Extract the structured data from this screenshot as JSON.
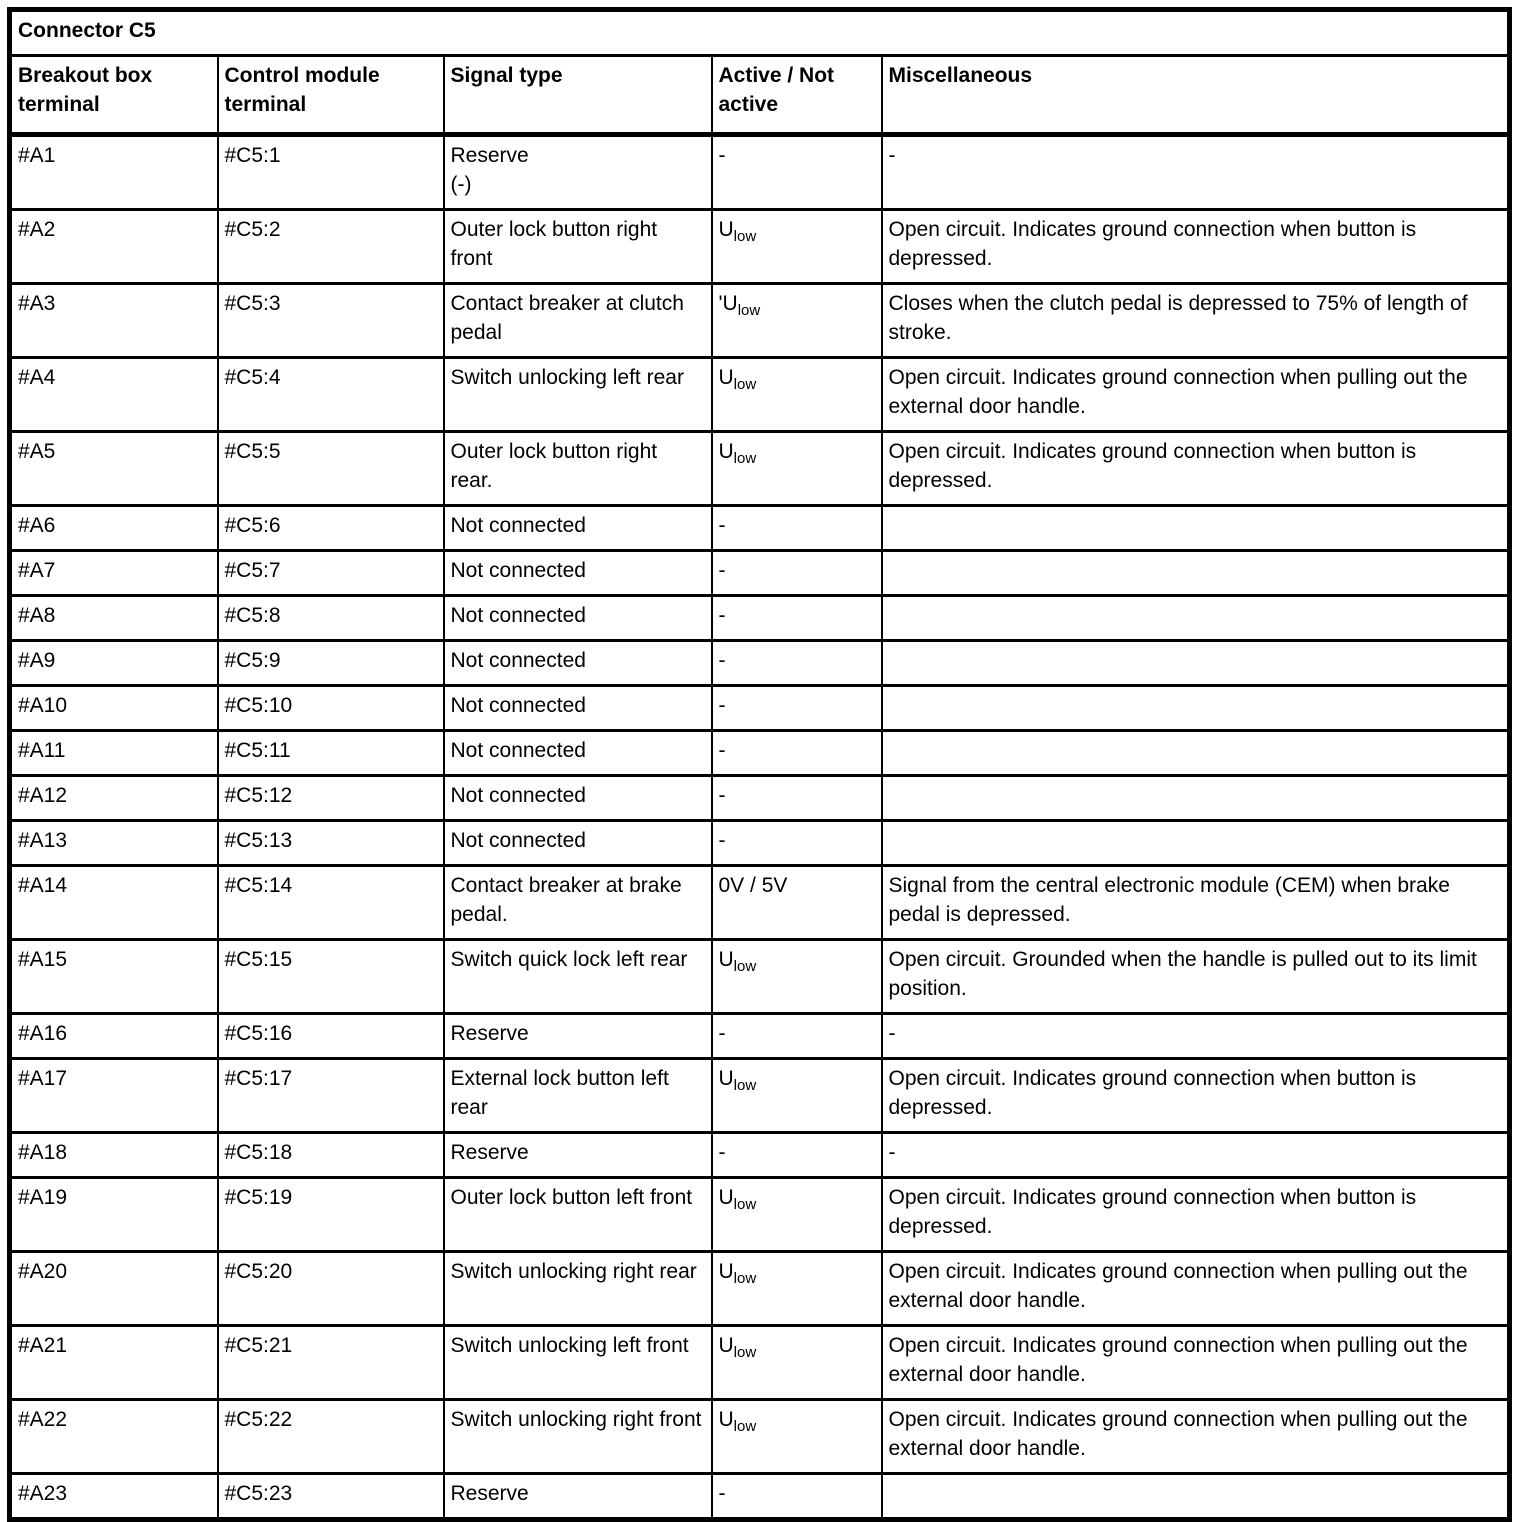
{
  "colors": {
    "border": "#000000",
    "text": "#000000",
    "background": "#ffffff"
  },
  "table": {
    "title": "Connector C5",
    "columns": [
      {
        "label": "Breakout box terminal"
      },
      {
        "label": "Control module terminal"
      },
      {
        "label": "Signal type"
      },
      {
        "label": "Active / Not active"
      },
      {
        "label": "Miscellaneous"
      }
    ],
    "rows": [
      {
        "breakout_terminal": "#A1",
        "module_terminal": "#C5:1",
        "signal_type": "Reserve\n(-)",
        "active": {
          "base": "-"
        },
        "miscellaneous": "-",
        "lines": 2
      },
      {
        "breakout_terminal": "#A2",
        "module_terminal": "#C5:2",
        "signal_type": "Outer lock button right front",
        "active": {
          "base": "U",
          "sub": "low"
        },
        "miscellaneous": "Open circuit. Indicates ground connection when button is depressed.",
        "lines": 2
      },
      {
        "breakout_terminal": "#A3",
        "module_terminal": "#C5:3",
        "signal_type": "Contact breaker at clutch pedal",
        "active": {
          "prefix": "'",
          "base": "U",
          "sub": "low"
        },
        "miscellaneous": "Closes when the clutch pedal is depressed to 75% of length of stroke.",
        "lines": 2
      },
      {
        "breakout_terminal": "#A4",
        "module_terminal": "#C5:4",
        "signal_type": "Switch unlocking left rear",
        "active": {
          "base": "U",
          "sub": "low"
        },
        "miscellaneous": "Open circuit. Indicates ground connection when pulling out the external door handle.",
        "lines": 2
      },
      {
        "breakout_terminal": "#A5",
        "module_terminal": "#C5:5",
        "signal_type": "Outer lock button right rear.",
        "active": {
          "base": "U",
          "sub": "low"
        },
        "miscellaneous": "Open circuit. Indicates ground connection when button is depressed.",
        "lines": 2
      },
      {
        "breakout_terminal": "#A6",
        "module_terminal": "#C5:6",
        "signal_type": "Not connected",
        "active": {
          "base": "-"
        },
        "miscellaneous": "",
        "lines": 1
      },
      {
        "breakout_terminal": "#A7",
        "module_terminal": "#C5:7",
        "signal_type": "Not connected",
        "active": {
          "base": "-"
        },
        "miscellaneous": "",
        "lines": 1
      },
      {
        "breakout_terminal": "#A8",
        "module_terminal": "#C5:8",
        "signal_type": "Not connected",
        "active": {
          "base": "-"
        },
        "miscellaneous": "",
        "lines": 1
      },
      {
        "breakout_terminal": "#A9",
        "module_terminal": "#C5:9",
        "signal_type": "Not connected",
        "active": {
          "base": "-"
        },
        "miscellaneous": "",
        "lines": 1
      },
      {
        "breakout_terminal": "#A10",
        "module_terminal": "#C5:10",
        "signal_type": "Not connected",
        "active": {
          "base": "-"
        },
        "miscellaneous": "",
        "lines": 1
      },
      {
        "breakout_terminal": "#A11",
        "module_terminal": "#C5:11",
        "signal_type": "Not connected",
        "active": {
          "base": "-"
        },
        "miscellaneous": "",
        "lines": 1
      },
      {
        "breakout_terminal": "#A12",
        "module_terminal": "#C5:12",
        "signal_type": "Not connected",
        "active": {
          "base": "-"
        },
        "miscellaneous": "",
        "lines": 1
      },
      {
        "breakout_terminal": "#A13",
        "module_terminal": "#C5:13",
        "signal_type": "Not connected",
        "active": {
          "base": "-"
        },
        "miscellaneous": "",
        "lines": 1
      },
      {
        "breakout_terminal": "#A14",
        "module_terminal": "#C5:14",
        "signal_type": "Contact breaker at brake pedal.",
        "active": {
          "base": "0V / 5V"
        },
        "miscellaneous": "Signal from the central electronic module (CEM) when brake pedal is depressed.",
        "lines": 2
      },
      {
        "breakout_terminal": "#A15",
        "module_terminal": "#C5:15",
        "signal_type": "Switch quick lock left rear",
        "active": {
          "base": "U",
          "sub": "low"
        },
        "miscellaneous": "Open circuit. Grounded when the handle is pulled out to its limit position.",
        "lines": 2
      },
      {
        "breakout_terminal": "#A16",
        "module_terminal": "#C5:16",
        "signal_type": "Reserve",
        "active": {
          "base": "-"
        },
        "miscellaneous": "-",
        "lines": 1
      },
      {
        "breakout_terminal": "#A17",
        "module_terminal": "#C5:17",
        "signal_type": "External lock button left rear",
        "active": {
          "base": "U",
          "sub": "low"
        },
        "miscellaneous": "Open circuit. Indicates ground connection when button is depressed.",
        "lines": 2
      },
      {
        "breakout_terminal": "#A18",
        "module_terminal": "#C5:18",
        "signal_type": "Reserve",
        "active": {
          "base": "-"
        },
        "miscellaneous": "-",
        "lines": 1
      },
      {
        "breakout_terminal": "#A19",
        "module_terminal": "#C5:19",
        "signal_type": "Outer lock button left front",
        "active": {
          "base": "U",
          "sub": "low"
        },
        "miscellaneous": "Open circuit. Indicates ground connection when button is depressed.",
        "lines": 2
      },
      {
        "breakout_terminal": "#A20",
        "module_terminal": "#C5:20",
        "signal_type": "Switch unlocking right rear",
        "active": {
          "base": "U",
          "sub": "low"
        },
        "miscellaneous": "Open circuit. Indicates ground connection when pulling out the external door handle.",
        "lines": 2
      },
      {
        "breakout_terminal": "#A21",
        "module_terminal": "#C5:21",
        "signal_type": "Switch unlocking left front",
        "active": {
          "base": "U",
          "sub": "low"
        },
        "miscellaneous": "Open circuit. Indicates ground connection when pulling out the external door handle.",
        "lines": 2
      },
      {
        "breakout_terminal": "#A22",
        "module_terminal": "#C5:22",
        "signal_type": "Switch unlocking right front",
        "active": {
          "base": "U",
          "sub": "low"
        },
        "miscellaneous": "Open circuit. Indicates ground connection when pulling out the external door handle.",
        "lines": 2
      },
      {
        "breakout_terminal": "#A23",
        "module_terminal": "#C5:23",
        "signal_type": "Reserve",
        "active": {
          "base": "-"
        },
        "miscellaneous": "",
        "lines": 1
      }
    ]
  }
}
